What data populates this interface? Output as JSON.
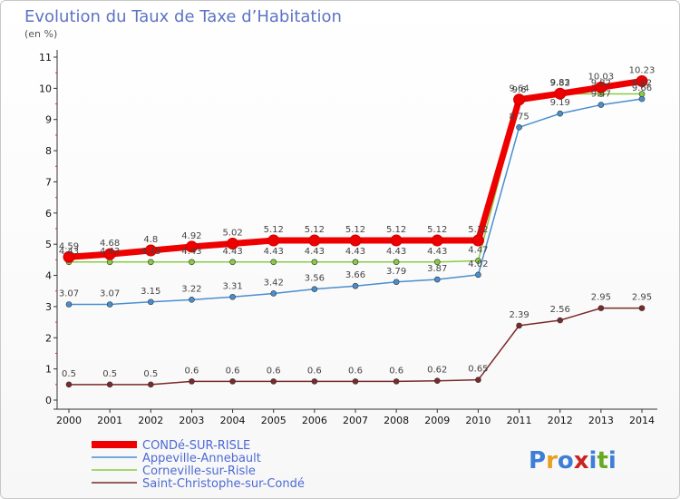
{
  "chart_data": {
    "type": "line",
    "title": "Evolution du Taux de Taxe d’Habitation",
    "subtitle": "(en %)",
    "xlabel": "",
    "ylabel": "",
    "x": [
      "2000",
      "2001",
      "2002",
      "2003",
      "2004",
      "2005",
      "2006",
      "2007",
      "2008",
      "2009",
      "2010",
      "2011",
      "2012",
      "2013",
      "2014"
    ],
    "ylim": [
      0,
      11
    ],
    "yticks": [
      "0",
      "1",
      "2",
      "3",
      "4",
      "5",
      "6",
      "7",
      "8",
      "9",
      "10",
      "11"
    ],
    "grid": false,
    "legend_position": "bottom-left",
    "series": [
      {
        "name": "CONDé-SUR-RISLE",
        "color": "#ee0000",
        "values": [
          4.59,
          4.68,
          4.8,
          4.92,
          5.02,
          5.12,
          5.12,
          5.12,
          5.12,
          5.12,
          5.12,
          9.64,
          9.83,
          10.03,
          10.23
        ],
        "labels": [
          "4.59",
          "4.68",
          "4.8",
          "4.92",
          "5.02",
          "5.12",
          "5.12",
          "5.12",
          "5.12",
          "5.12",
          "5.12",
          "9.64",
          "9.83",
          "10.03",
          "10.23"
        ]
      },
      {
        "name": "Appeville-Annebault",
        "color": "#4a8ed0",
        "values": [
          3.07,
          3.07,
          3.15,
          3.22,
          3.31,
          3.42,
          3.56,
          3.66,
          3.79,
          3.87,
          4.02,
          8.75,
          9.19,
          9.47,
          9.66
        ],
        "labels": [
          "3.07",
          "3.07",
          "3.15",
          "3.22",
          "3.31",
          "3.42",
          "3.56",
          "3.66",
          "3.79",
          "3.87",
          "4.02",
          "8.75",
          "9.19",
          "9.47",
          "9.66"
        ]
      },
      {
        "name": "Corneville-sur-Risle",
        "color": "#88cc44",
        "values": [
          4.43,
          4.43,
          4.43,
          4.43,
          4.43,
          4.43,
          4.43,
          4.43,
          4.43,
          4.43,
          4.47,
          9.6,
          9.82,
          9.82,
          9.82
        ],
        "labels": [
          "4.43",
          "4.43",
          "4.43",
          "4.43",
          "4.43",
          "4.43",
          "4.43",
          "4.43",
          "4.43",
          "4.43",
          "4.47",
          "9.6",
          "9.82",
          "9.82",
          "9.82"
        ]
      },
      {
        "name": "Saint-Christophe-sur-Condé",
        "color": "#7a2a2a",
        "values": [
          0.5,
          0.5,
          0.5,
          0.6,
          0.6,
          0.6,
          0.6,
          0.6,
          0.6,
          0.62,
          0.65,
          2.39,
          2.56,
          2.95,
          2.95
        ],
        "labels": [
          "0.5",
          "0.5",
          "0.5",
          "0.6",
          "0.6",
          "0.6",
          "0.6",
          "0.6",
          "0.6",
          "0.62",
          "0.65",
          "2.39",
          "2.56",
          "2.95",
          "2.95"
        ]
      }
    ]
  },
  "logo": {
    "text": "Proxiti",
    "letters": [
      "P",
      "r",
      "o",
      "x",
      "i",
      "t",
      "i"
    ],
    "colors": [
      "#3d7fd6",
      "#e8a020",
      "#3d7fd6",
      "#cc2222",
      "#3d7fd6",
      "#66aa22",
      "#3d7fd6"
    ]
  }
}
